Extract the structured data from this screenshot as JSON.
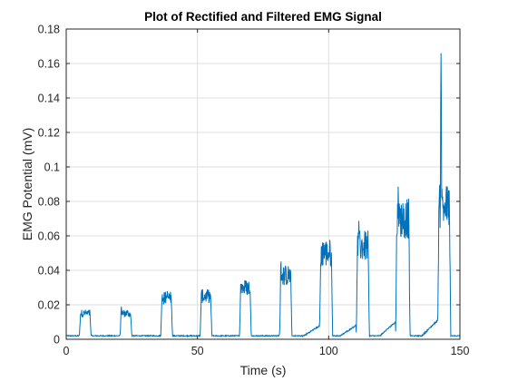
{
  "chart_data": {
    "type": "line",
    "title": "Plot of Rectified and Filtered EMG Signal",
    "xlabel": "Time (s)",
    "ylabel": "EMG Potential (mV)",
    "xlim": [
      0,
      150
    ],
    "ylim": [
      0,
      0.18
    ],
    "x_ticks": [
      0,
      50,
      100,
      150
    ],
    "x_tick_labels": [
      "0",
      "50",
      "100",
      "150"
    ],
    "y_ticks": [
      0,
      0.02,
      0.04,
      0.06,
      0.08,
      0.1,
      0.12,
      0.14,
      0.16,
      0.18
    ],
    "y_tick_labels": [
      "0",
      "0.02",
      "0.04",
      "0.06",
      "0.08",
      "0.1",
      "0.12",
      "0.14",
      "0.16",
      "0.18"
    ],
    "grid": true,
    "line_color": "#0072BD",
    "baseline": 0.002,
    "bursts": [
      {
        "start": 5,
        "end": 9.5,
        "level": 0.013
      },
      {
        "start": 20.5,
        "end": 25,
        "level": 0.013
      },
      {
        "start": 36,
        "end": 40.5,
        "level": 0.022
      },
      {
        "start": 51,
        "end": 55.5,
        "level": 0.023
      },
      {
        "start": 66,
        "end": 70.5,
        "level": 0.028
      },
      {
        "start": 81.5,
        "end": 86,
        "level": 0.035
      },
      {
        "start": 96.5,
        "end": 101.5,
        "level": 0.048
      },
      {
        "start": 110.5,
        "end": 115.5,
        "level": 0.052
      },
      {
        "start": 125.5,
        "end": 131,
        "level": 0.068
      },
      {
        "start": 141.5,
        "end": 146.5,
        "level": 0.075
      }
    ],
    "peaks": [
      {
        "x": 5.5,
        "y": 0.015
      },
      {
        "x": 21,
        "y": 0.019
      },
      {
        "x": 38.5,
        "y": 0.028
      },
      {
        "x": 54,
        "y": 0.027
      },
      {
        "x": 67,
        "y": 0.031
      },
      {
        "x": 81.8,
        "y": 0.046
      },
      {
        "x": 98,
        "y": 0.057
      },
      {
        "x": 111.5,
        "y": 0.069
      },
      {
        "x": 126.5,
        "y": 0.089
      },
      {
        "x": 142.8,
        "y": 0.166
      }
    ]
  }
}
